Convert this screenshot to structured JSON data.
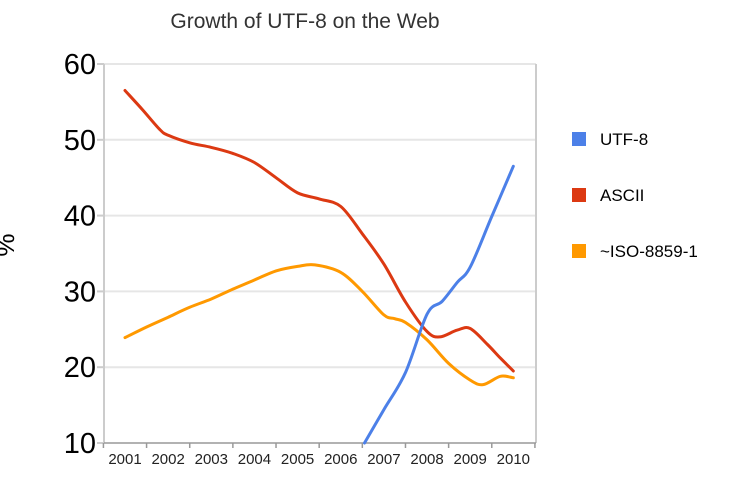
{
  "chart_data": {
    "type": "line",
    "title": "Growth of UTF-8 on the Web",
    "xlabel": "",
    "ylabel": "%",
    "x_ticks": [
      2001,
      2002,
      2003,
      2004,
      2005,
      2006,
      2007,
      2008,
      2009,
      2010
    ],
    "y_ticks": [
      10,
      20,
      30,
      40,
      50,
      60
    ],
    "xlim": [
      2000.5,
      2010.5
    ],
    "ylim": [
      10,
      60
    ],
    "grid": "horizontal",
    "legend_position": "right",
    "background_color": "#ffffff",
    "gridline_color": "#e6e6e6",
    "axis_color": "#999999",
    "border_color": "#cccccc",
    "title_color": "#333333",
    "tick_label_color": "#222222",
    "series": [
      {
        "name": "UTF-8",
        "color": "#4c80e8",
        "points": [
          [
            2006.55,
            10.0
          ],
          [
            2007,
            14.4
          ],
          [
            2007.5,
            19.3
          ],
          [
            2008,
            27.0
          ],
          [
            2008.35,
            28.7
          ],
          [
            2008.7,
            31.2
          ],
          [
            2009,
            33.2
          ],
          [
            2009.5,
            39.9
          ],
          [
            2010,
            46.5
          ]
        ]
      },
      {
        "name": "ASCII",
        "color": "#dc3912",
        "points": [
          [
            2001,
            56.5
          ],
          [
            2001.4,
            54.0
          ],
          [
            2001.8,
            51.4
          ],
          [
            2002,
            50.6
          ],
          [
            2002.5,
            49.6
          ],
          [
            2003,
            49.0
          ],
          [
            2003.5,
            48.2
          ],
          [
            2004,
            47.0
          ],
          [
            2004.5,
            45.0
          ],
          [
            2005,
            43.0
          ],
          [
            2005.5,
            42.2
          ],
          [
            2006,
            41.2
          ],
          [
            2006.5,
            37.6
          ],
          [
            2007,
            33.6
          ],
          [
            2007.5,
            28.6
          ],
          [
            2008,
            24.7
          ],
          [
            2008.3,
            24.0
          ],
          [
            2008.7,
            24.9
          ],
          [
            2009,
            25.1
          ],
          [
            2009.4,
            23.0
          ],
          [
            2009.7,
            21.2
          ],
          [
            2010,
            19.5
          ]
        ]
      },
      {
        "name": "~ISO-8859-1",
        "color": "#ff9900",
        "points": [
          [
            2001,
            23.9
          ],
          [
            2001.5,
            25.3
          ],
          [
            2002,
            26.6
          ],
          [
            2002.5,
            27.9
          ],
          [
            2003,
            29.0
          ],
          [
            2003.5,
            30.3
          ],
          [
            2004,
            31.5
          ],
          [
            2004.5,
            32.7
          ],
          [
            2005,
            33.3
          ],
          [
            2005.4,
            33.5
          ],
          [
            2006,
            32.5
          ],
          [
            2006.5,
            30.0
          ],
          [
            2007,
            26.9
          ],
          [
            2007.25,
            26.4
          ],
          [
            2007.5,
            25.9
          ],
          [
            2008,
            23.6
          ],
          [
            2008.5,
            20.5
          ],
          [
            2009,
            18.3
          ],
          [
            2009.3,
            17.7
          ],
          [
            2009.7,
            18.8
          ],
          [
            2010,
            18.6
          ]
        ]
      }
    ]
  }
}
